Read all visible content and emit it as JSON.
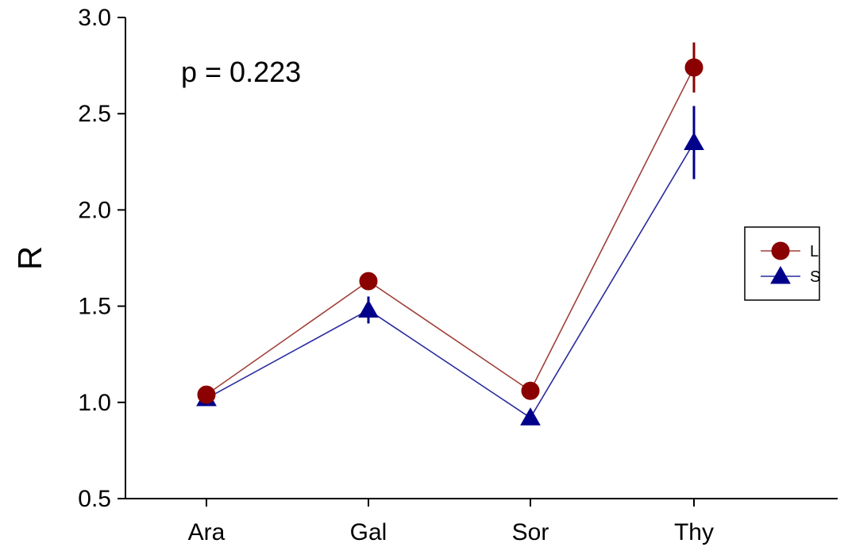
{
  "chart_data": {
    "type": "line",
    "title": "",
    "xlabel": "",
    "ylabel": "R",
    "categories": [
      "Ara",
      "Gal",
      "Sor",
      "Thy"
    ],
    "ylim": [
      0.5,
      3.0
    ],
    "yticks": [
      "0.5",
      "1.0",
      "1.5",
      "2.0",
      "2.5",
      "3.0"
    ],
    "grid": false,
    "legend_position": "right",
    "annotation": "p = 0.223",
    "series": [
      {
        "name": "L",
        "marker": "circle",
        "color": "#8b0000",
        "line_color": "#a0403a",
        "values": [
          1.04,
          1.63,
          1.06,
          2.74
        ],
        "errors": [
          0.02,
          0.03,
          0.02,
          0.13
        ]
      },
      {
        "name": "S",
        "marker": "triangle",
        "color": "#00008b",
        "line_color": "#2a2aa0",
        "values": [
          1.02,
          1.48,
          0.92,
          2.35
        ],
        "errors": [
          0.02,
          0.07,
          0.02,
          0.19
        ]
      }
    ]
  }
}
